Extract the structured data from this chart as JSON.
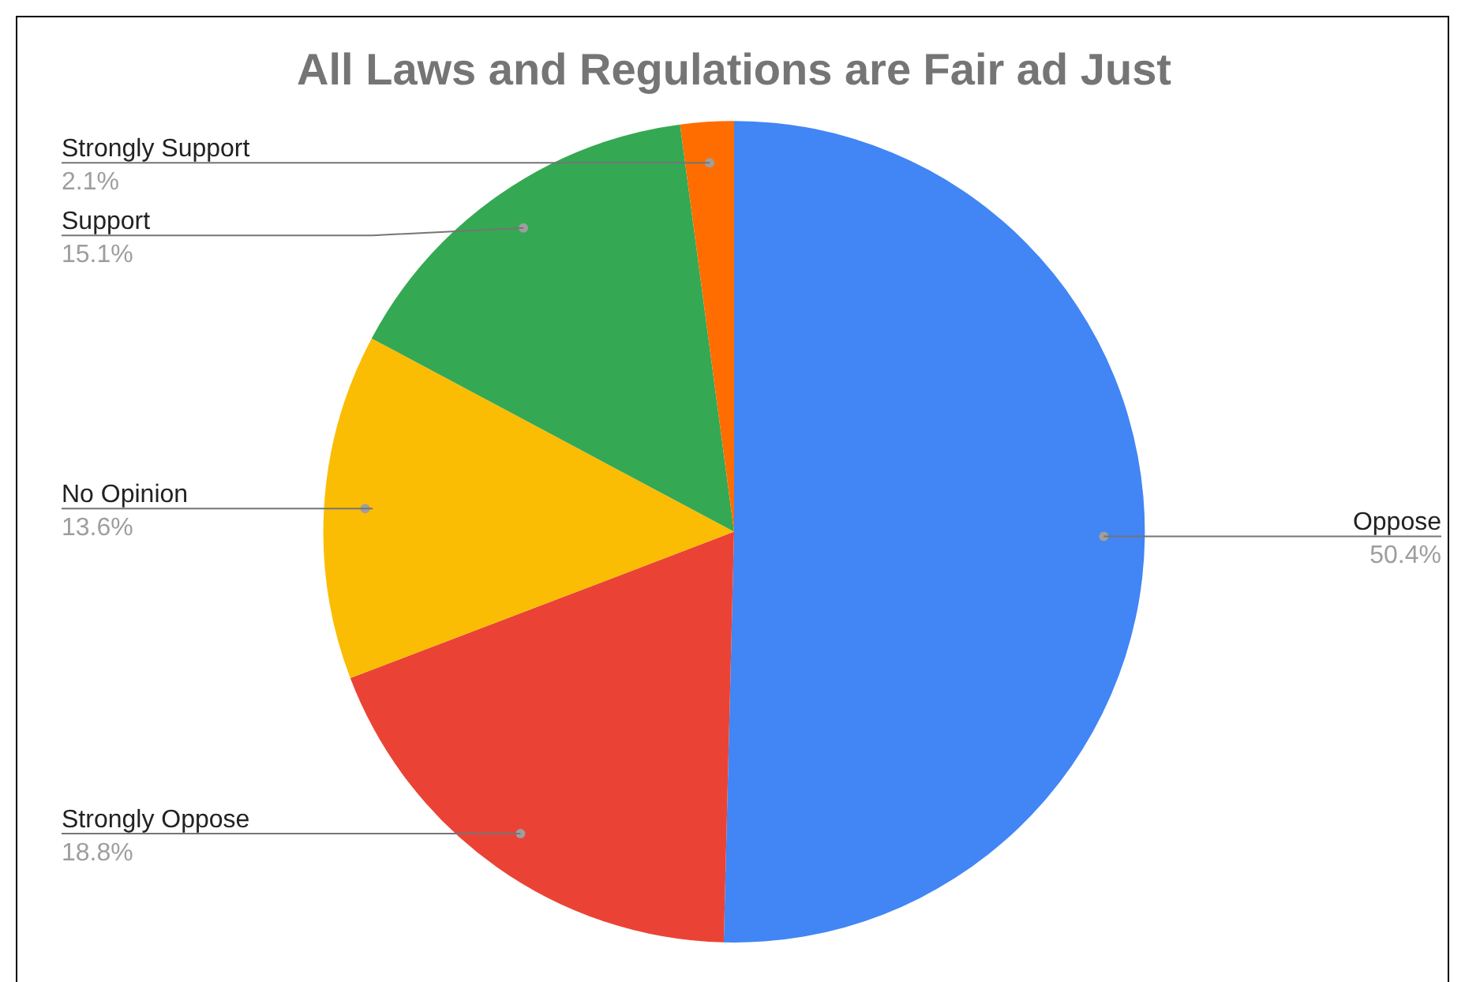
{
  "chart_data": {
    "type": "pie",
    "title": "All Laws and Regulations are Fair ad Just",
    "categories": [
      "Oppose",
      "Strongly Oppose",
      "No Opinion",
      "Support",
      "Strongly Support"
    ],
    "values": [
      50.4,
      18.8,
      13.6,
      15.1,
      2.1
    ],
    "colors": [
      "#4285f4",
      "#ea4335",
      "#fbbc04",
      "#34a853",
      "#ff6d01"
    ],
    "value_labels": [
      "50.4%",
      "18.8%",
      "13.6%",
      "15.1%",
      "2.1%"
    ],
    "legend": false
  }
}
